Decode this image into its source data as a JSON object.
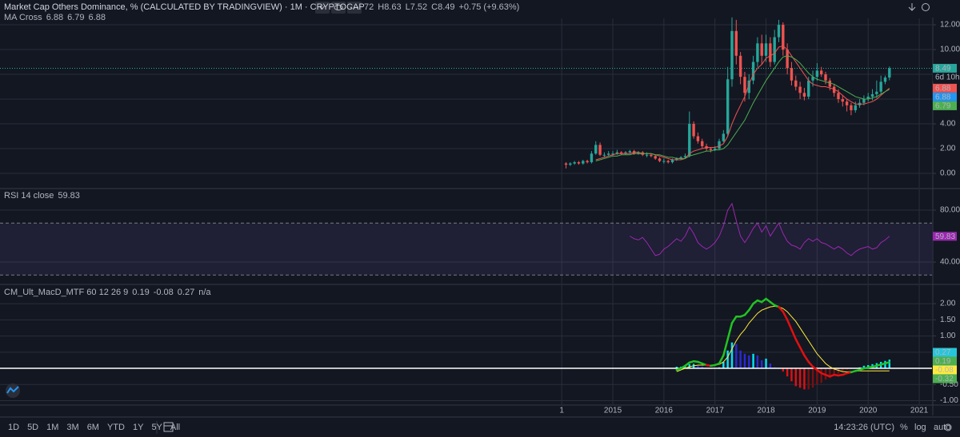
{
  "header": {
    "title": "Market Cap Others Dominance, % (CALCULATED BY TRADINGVIEW) · 1M · CRYPTOCAP",
    "ohlc": [
      "72",
      "H8.63",
      "L7.52",
      "C8.49",
      "+0.75 (+9.63%)"
    ]
  },
  "chart_data": [
    {
      "type": "candlestick",
      "legend": {
        "label": "MA Cross",
        "values": [
          6.88,
          6.79,
          6.88
        ],
        "colors": [
          "#ef5350",
          "#4caf50",
          "#2196f3"
        ]
      },
      "x": [
        1,
        2,
        3,
        4,
        5,
        6,
        7,
        8,
        9,
        10,
        11,
        12,
        13,
        14,
        15,
        16,
        17,
        18,
        19,
        20,
        21,
        22,
        23,
        24,
        25,
        26,
        27,
        28,
        29,
        30,
        31,
        32,
        33,
        34,
        35,
        36,
        37,
        38,
        39,
        40,
        41,
        42,
        43,
        44,
        45,
        46,
        47,
        48,
        49,
        50,
        51,
        52,
        53,
        54,
        55,
        56,
        57,
        58,
        59,
        60,
        61,
        62,
        63,
        64,
        65,
        66,
        67,
        68,
        69,
        70,
        71,
        72,
        73,
        74,
        75,
        76,
        77
      ],
      "open": [
        0.8,
        0.7,
        0.8,
        0.9,
        0.8,
        1.0,
        0.9,
        1.6,
        2.3,
        1.5,
        1.5,
        1.6,
        1.6,
        1.7,
        1.6,
        1.7,
        1.8,
        1.6,
        1.7,
        1.5,
        1.5,
        1.4,
        1.2,
        1.0,
        1.0,
        0.9,
        1.1,
        1.2,
        1.3,
        1.4,
        4.0,
        3.0,
        2.6,
        2.2,
        2.0,
        1.9,
        2.0,
        2.6,
        3.2,
        7.6,
        11.5,
        9.5,
        7.8,
        6.5,
        7.5,
        9.0,
        10.5,
        9.5,
        10.5,
        9.0,
        11.0,
        12.0,
        10.0,
        8.5,
        7.5,
        7.0,
        6.5,
        6.2,
        7.5,
        7.8,
        8.3,
        8.0,
        7.5,
        7.0,
        6.5,
        6.0,
        5.8,
        5.5,
        5.1,
        5.5,
        5.7,
        6.0,
        6.2,
        6.4,
        6.6,
        7.4,
        7.74
      ],
      "high": [
        0.9,
        0.9,
        1.0,
        1.0,
        1.1,
        1.1,
        1.8,
        2.6,
        2.5,
        1.7,
        1.8,
        1.8,
        1.9,
        1.8,
        1.8,
        1.9,
        1.9,
        1.8,
        1.8,
        1.7,
        1.6,
        1.5,
        1.3,
        1.2,
        1.1,
        1.2,
        1.3,
        1.4,
        1.6,
        5.0,
        4.2,
        3.3,
        2.8,
        2.4,
        2.1,
        2.2,
        2.8,
        3.5,
        8.6,
        12.6,
        12.4,
        9.8,
        8.2,
        8.0,
        9.5,
        11.0,
        11.2,
        11.2,
        11.0,
        11.6,
        12.4,
        12.2,
        10.5,
        9.0,
        7.9,
        7.4,
        6.9,
        7.8,
        8.3,
        8.9,
        8.6,
        8.2,
        7.7,
        7.2,
        6.8,
        6.3,
        6.0,
        5.7,
        5.8,
        6.0,
        6.3,
        6.5,
        6.8,
        7.5,
        7.9,
        7.9,
        8.63
      ],
      "low": [
        0.4,
        0.6,
        0.7,
        0.7,
        0.7,
        0.8,
        0.8,
        1.5,
        1.4,
        1.3,
        1.4,
        1.4,
        1.5,
        1.5,
        1.5,
        1.6,
        1.5,
        1.5,
        1.4,
        1.3,
        1.3,
        1.1,
        0.9,
        0.8,
        0.8,
        0.8,
        1.0,
        1.1,
        1.2,
        1.3,
        2.8,
        2.4,
        2.0,
        1.8,
        1.7,
        1.8,
        1.9,
        2.5,
        3.0,
        7.0,
        8.8,
        7.2,
        5.8,
        6.0,
        7.2,
        8.6,
        8.8,
        9.0,
        8.6,
        8.8,
        10.6,
        9.5,
        8.0,
        7.1,
        6.7,
        6.0,
        5.9,
        6.0,
        7.0,
        7.5,
        7.8,
        7.2,
        6.7,
        6.2,
        5.7,
        5.4,
        5.0,
        4.7,
        4.9,
        5.3,
        5.5,
        5.8,
        5.9,
        6.1,
        6.4,
        7.2,
        7.52
      ],
      "close": [
        0.7,
        0.8,
        0.9,
        0.8,
        1.0,
        0.9,
        1.6,
        2.3,
        1.5,
        1.5,
        1.6,
        1.6,
        1.7,
        1.6,
        1.7,
        1.8,
        1.6,
        1.7,
        1.5,
        1.5,
        1.4,
        1.2,
        1.0,
        1.0,
        0.9,
        1.1,
        1.2,
        1.3,
        1.4,
        4.0,
        3.0,
        2.6,
        2.2,
        2.0,
        1.9,
        2.0,
        2.6,
        3.2,
        7.6,
        11.5,
        9.5,
        7.8,
        6.5,
        7.5,
        9.0,
        10.5,
        9.5,
        10.5,
        9.0,
        11.0,
        12.0,
        10.0,
        8.5,
        7.5,
        7.0,
        6.5,
        6.2,
        7.5,
        7.8,
        8.3,
        8.0,
        7.5,
        7.0,
        6.5,
        6.0,
        5.8,
        5.5,
        5.1,
        5.5,
        5.7,
        6.0,
        6.2,
        6.4,
        6.6,
        7.4,
        7.74,
        8.49
      ],
      "up_color": "#26a69a",
      "down_color": "#ef5350",
      "lines": [
        {
          "color": "#ef5350",
          "values": [
            null,
            null,
            null,
            null,
            null,
            null,
            null,
            1.1,
            1.2,
            1.3,
            1.4,
            1.5,
            1.6,
            1.6,
            1.6,
            1.6,
            1.7,
            1.7,
            1.6,
            1.6,
            1.6,
            1.5,
            1.4,
            1.3,
            1.2,
            1.1,
            1.1,
            1.1,
            1.2,
            1.6,
            1.8,
            1.9,
            2.0,
            2.1,
            2.1,
            2.1,
            2.2,
            2.4,
            3.0,
            4.0,
            4.8,
            5.5,
            6.2,
            7.2,
            8.0,
            8.5,
            8.8,
            9.3,
            9.5,
            9.7,
            10.2,
            10.3,
            10.0,
            9.5,
            9.0,
            8.5,
            8.0,
            7.5,
            7.2,
            7.1,
            7.0,
            7.0,
            6.9,
            6.8,
            6.6,
            6.3,
            6.0,
            5.8,
            5.6,
            5.6,
            5.6,
            5.7,
            5.8,
            6.0,
            6.3,
            6.6,
            6.88
          ]
        },
        {
          "color": "#4caf50",
          "values": [
            null,
            null,
            null,
            null,
            null,
            null,
            null,
            1.0,
            1.1,
            1.2,
            1.3,
            1.4,
            1.4,
            1.5,
            1.5,
            1.5,
            1.6,
            1.6,
            1.6,
            1.6,
            1.6,
            1.5,
            1.5,
            1.4,
            1.3,
            1.3,
            1.2,
            1.2,
            1.2,
            1.4,
            1.5,
            1.6,
            1.7,
            1.8,
            1.8,
            1.9,
            1.9,
            2.0,
            2.3,
            2.8,
            3.3,
            3.8,
            4.3,
            5.0,
            5.7,
            6.3,
            6.9,
            7.5,
            8.0,
            8.5,
            9.0,
            9.4,
            9.5,
            9.4,
            9.2,
            8.9,
            8.5,
            8.1,
            7.8,
            7.6,
            7.5,
            7.4,
            7.3,
            7.2,
            7.0,
            6.8,
            6.6,
            6.4,
            6.2,
            6.1,
            6.0,
            6.0,
            6.1,
            6.2,
            6.4,
            6.6,
            6.79
          ]
        }
      ],
      "xlim": [
        -132,
        87
      ],
      "xticks": [
        {
          "value": 0,
          "label": "1"
        },
        {
          "value": 12,
          "label": "2015"
        },
        {
          "value": 24,
          "label": "2016"
        },
        {
          "value": 36,
          "label": "2017"
        },
        {
          "value": 48,
          "label": "2018"
        },
        {
          "value": 60,
          "label": "2019"
        },
        {
          "value": 72,
          "label": "2020"
        },
        {
          "value": 84,
          "label": "2021"
        }
      ],
      "ylim": [
        -1.16,
        12.52
      ],
      "yticks": [
        {
          "value": 0,
          "label": "0.00"
        },
        {
          "value": 2,
          "label": "2.00"
        },
        {
          "value": 4,
          "label": "4.00"
        },
        {
          "value": 6,
          "label": "6.00"
        },
        {
          "value": 8,
          "label": "8.00"
        },
        {
          "value": 10,
          "label": "10.00"
        },
        {
          "value": 12,
          "label": "12.00"
        }
      ],
      "tags": [
        {
          "value": 8.49,
          "color": "#26a69a",
          "text_color": "#ffffff"
        },
        {
          "value": 6.88,
          "color": "#ef5350",
          "text_color": "#ffffff"
        },
        {
          "value": 6.88,
          "color": "#2196f3",
          "text_color": "#ffffff"
        },
        {
          "value": 6.79,
          "color": "#4caf50",
          "text_color": "#ffffff"
        }
      ],
      "countdown": "6d 10h",
      "grid": true
    },
    {
      "type": "line",
      "legend": {
        "label": "RSI 14 close",
        "values": [
          59.83
        ],
        "colors": [
          "#9c27b0"
        ]
      },
      "x": [
        16,
        17,
        18,
        19,
        20,
        21,
        22,
        23,
        24,
        25,
        26,
        27,
        28,
        29,
        30,
        31,
        32,
        33,
        34,
        35,
        36,
        37,
        38,
        39,
        40,
        41,
        42,
        43,
        44,
        45,
        46,
        47,
        48,
        49,
        50,
        51,
        52,
        53,
        54,
        55,
        56,
        57,
        58,
        59,
        60,
        61,
        62,
        63,
        64,
        65,
        66,
        67,
        68,
        69,
        70,
        71,
        72,
        73,
        74,
        75,
        76,
        77
      ],
      "values": [
        60,
        58,
        57,
        59,
        55,
        50,
        45,
        46,
        50,
        52,
        55,
        58,
        56,
        60,
        67,
        62,
        55,
        52,
        50,
        52,
        55,
        60,
        68,
        80,
        85,
        72,
        60,
        55,
        60,
        66,
        70,
        63,
        68,
        60,
        65,
        70,
        62,
        56,
        53,
        52,
        50,
        55,
        58,
        56,
        58,
        55,
        54,
        52,
        50,
        52,
        50,
        47,
        45,
        48,
        50,
        51,
        52,
        50,
        51,
        55,
        57,
        59.83
      ],
      "color": "#9c27b0",
      "bands": [
        70,
        30
      ],
      "band_color": "#7e57c2",
      "xlim": [
        -132,
        87
      ],
      "ylim": [
        23.4,
        96
      ],
      "yticks": [
        {
          "value": 40,
          "label": "40.00"
        },
        {
          "value": 80,
          "label": "80.00"
        }
      ],
      "tags": [
        {
          "value": 59.83,
          "color": "#9c27b0",
          "text_color": "#ffffff"
        }
      ],
      "grid": true
    },
    {
      "type": "macd",
      "legend": {
        "label": "CM_Ult_MacD_MTF 60 12 26 9",
        "values": [
          0.19,
          -0.08,
          0.27,
          "n/a"
        ],
        "colors": [
          "#4caf50",
          "#ffeb3b",
          "#26c6da",
          "#ef5350"
        ]
      },
      "x": [
        27,
        28,
        29,
        30,
        31,
        32,
        33,
        34,
        35,
        36,
        37,
        38,
        39,
        40,
        41,
        42,
        43,
        44,
        45,
        46,
        47,
        48,
        49,
        50,
        51,
        52,
        53,
        54,
        55,
        56,
        57,
        58,
        59,
        60,
        61,
        62,
        63,
        64,
        65,
        66,
        67,
        68,
        69,
        70,
        71,
        72,
        73,
        74,
        75,
        76,
        77
      ],
      "macd": [
        -0.05,
        0.0,
        0.08,
        0.18,
        0.22,
        0.2,
        0.15,
        0.1,
        0.08,
        0.1,
        0.15,
        0.4,
        0.9,
        1.4,
        1.6,
        1.6,
        1.65,
        1.8,
        2.0,
        2.1,
        2.05,
        2.15,
        2.05,
        1.95,
        1.9,
        1.75,
        1.5,
        1.2,
        0.9,
        0.65,
        0.4,
        0.2,
        0.05,
        -0.05,
        -0.15,
        -0.2,
        -0.25,
        -0.2,
        -0.22,
        -0.2,
        -0.15,
        -0.12,
        -0.08,
        -0.05,
        0.0,
        0.02,
        0.05,
        0.08,
        0.12,
        0.15,
        0.19
      ],
      "signal": [
        -0.1,
        -0.05,
        0.0,
        0.05,
        0.08,
        0.1,
        0.1,
        0.1,
        0.1,
        0.1,
        0.12,
        0.2,
        0.35,
        0.6,
        0.85,
        1.05,
        1.2,
        1.4,
        1.55,
        1.7,
        1.8,
        1.85,
        1.9,
        1.92,
        1.9,
        1.85,
        1.75,
        1.6,
        1.45,
        1.25,
        1.05,
        0.85,
        0.65,
        0.45,
        0.3,
        0.15,
        0.05,
        -0.02,
        -0.06,
        -0.1,
        -0.11,
        -0.1,
        -0.09,
        -0.08,
        -0.08,
        -0.08,
        -0.08,
        -0.08,
        -0.08,
        -0.08,
        -0.08
      ],
      "histogram": [
        0.05,
        0.05,
        0.08,
        0.13,
        0.14,
        0.1,
        0.05,
        0.0,
        -0.02,
        0.0,
        0.03,
        0.2,
        0.55,
        0.8,
        0.75,
        0.55,
        0.45,
        0.4,
        0.45,
        0.4,
        0.25,
        0.3,
        0.15,
        0.03,
        0.0,
        -0.1,
        -0.25,
        -0.4,
        -0.55,
        -0.6,
        -0.65,
        -0.65,
        -0.6,
        -0.5,
        -0.45,
        -0.35,
        -0.3,
        -0.18,
        -0.16,
        -0.1,
        -0.04,
        -0.02,
        0.01,
        0.03,
        0.08,
        0.1,
        0.13,
        0.16,
        0.2,
        0.23,
        0.27
      ],
      "macd_colors": [
        "#22c322",
        "#e01010"
      ],
      "signal_color": "#ffeb3b",
      "histogram_colors": [
        "#00e5ff",
        "#2a2ad8",
        "#e01010",
        "#7a1010"
      ],
      "xlim": [
        -132,
        87
      ],
      "ylim": [
        -1.11,
        2.57
      ],
      "yticks": [
        {
          "value": -1,
          "label": "-1.00"
        },
        {
          "value": -0.5,
          "label": "-0.50"
        },
        {
          "value": 0.5,
          "label": "0.50"
        },
        {
          "value": 1,
          "label": "1.00"
        },
        {
          "value": 1.5,
          "label": "1.50"
        },
        {
          "value": 2,
          "label": "2.00"
        }
      ],
      "tags": [
        {
          "value": 0.27,
          "color": "#26c6da",
          "text_color": "#131722"
        },
        {
          "value": 0.19,
          "color": "#4caf50",
          "text_color": "#131722"
        },
        {
          "value": -0.08,
          "color": "#ffeb3b",
          "text_color": "#131722"
        },
        {
          "value": -0.32,
          "color": "#4caf50",
          "text_color": "#131722"
        }
      ],
      "grid": true
    }
  ],
  "bottom_bar": {
    "ranges": [
      "1D",
      "5D",
      "1M",
      "3M",
      "6M",
      "YTD",
      "1Y",
      "5Y",
      "All"
    ],
    "time": "14:23:26 (UTC)",
    "options": [
      "%",
      "log",
      "auto"
    ]
  }
}
